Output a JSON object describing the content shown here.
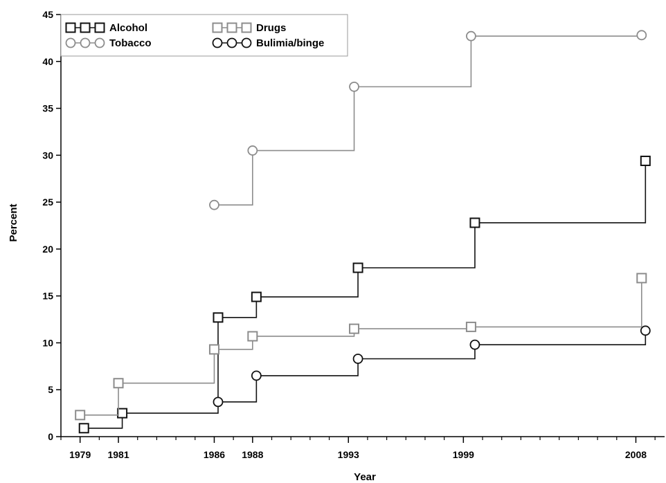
{
  "chart_data": {
    "type": "line",
    "step": true,
    "xlabel": "Year",
    "ylabel": "Percent",
    "xlim": [
      1978.0,
      2009.5
    ],
    "ylim": [
      0,
      45
    ],
    "x_ticks": [
      1979,
      1981,
      1986,
      1988,
      1993,
      1999,
      2008
    ],
    "y_ticks": [
      0,
      5,
      10,
      15,
      20,
      25,
      30,
      35,
      40,
      45
    ],
    "grid": false,
    "legend_position": "top-left",
    "series": [
      {
        "name": "Alcohol",
        "marker": "square",
        "color": "#111111",
        "points": [
          [
            1979.2,
            0.9
          ],
          [
            1981.2,
            2.5
          ],
          [
            1986.2,
            12.7
          ],
          [
            1988.2,
            14.9
          ],
          [
            1993.5,
            18.0
          ],
          [
            1999.6,
            22.8
          ],
          [
            2008.5,
            29.4
          ]
        ]
      },
      {
        "name": "Drugs",
        "marker": "square",
        "color": "#8c8c8c",
        "points": [
          [
            1979.0,
            2.3
          ],
          [
            1981.0,
            5.7
          ],
          [
            1986.0,
            9.3
          ],
          [
            1988.0,
            10.7
          ],
          [
            1993.3,
            11.5
          ],
          [
            1999.4,
            11.7
          ],
          [
            2008.3,
            16.9
          ]
        ]
      },
      {
        "name": "Tobacco",
        "marker": "circle",
        "color": "#8c8c8c",
        "points": [
          [
            1986.0,
            24.7
          ],
          [
            1988.0,
            30.5
          ],
          [
            1993.3,
            37.3
          ],
          [
            1999.4,
            42.7
          ],
          [
            2008.3,
            42.8
          ]
        ]
      },
      {
        "name": "Bulimia/binge",
        "marker": "circle",
        "color": "#111111",
        "points": [
          [
            1986.2,
            3.7
          ],
          [
            1988.2,
            6.5
          ],
          [
            1993.5,
            8.3
          ],
          [
            1999.6,
            9.8
          ],
          [
            2008.5,
            11.3
          ]
        ]
      }
    ]
  }
}
